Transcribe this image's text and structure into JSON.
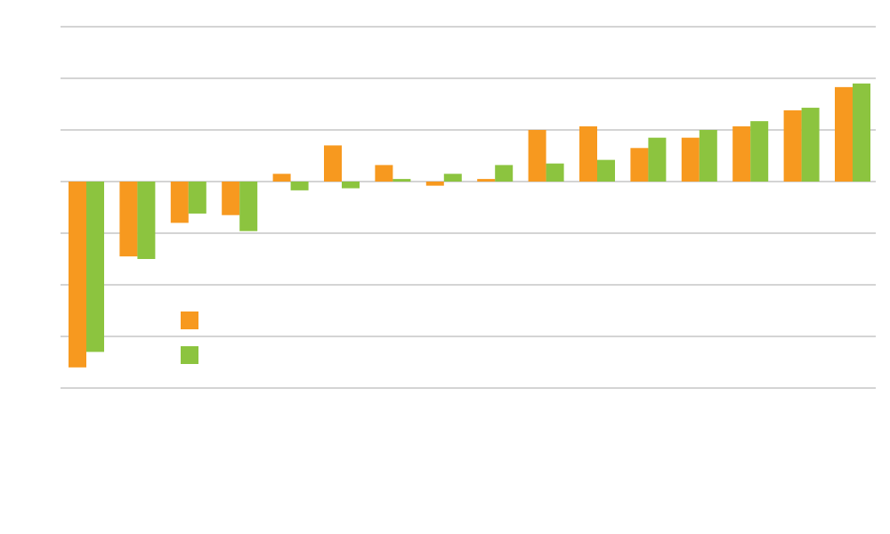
{
  "chart_data": {
    "type": "bar",
    "title": "",
    "xlabel": "",
    "ylabel": "",
    "categories": [
      "",
      "",
      "",
      "",
      "",
      "",
      "",
      "",
      "",
      "",
      "",
      "",
      "",
      "",
      "",
      ""
    ],
    "ylim": [
      -4,
      3
    ],
    "yticks": [
      -4,
      -3,
      -2,
      -1,
      0,
      1,
      2,
      3
    ],
    "grid": true,
    "legend_position": "center-left",
    "series": [
      {
        "color": "#f7991f",
        "values": [
          -3.6,
          -1.45,
          -0.8,
          -0.65,
          0.15,
          0.7,
          0.32,
          -0.08,
          0.05,
          1.0,
          1.07,
          0.65,
          0.85,
          1.07,
          1.38,
          1.83
        ]
      },
      {
        "color": "#8cc43f",
        "values": [
          -3.3,
          -1.5,
          -0.62,
          -0.96,
          -0.17,
          -0.13,
          0.05,
          0.15,
          0.32,
          0.35,
          0.42,
          0.85,
          1.0,
          1.17,
          1.43,
          1.9
        ]
      }
    ],
    "colors": {
      "grid": "#d4d4d4",
      "background": "#ffffff"
    }
  }
}
